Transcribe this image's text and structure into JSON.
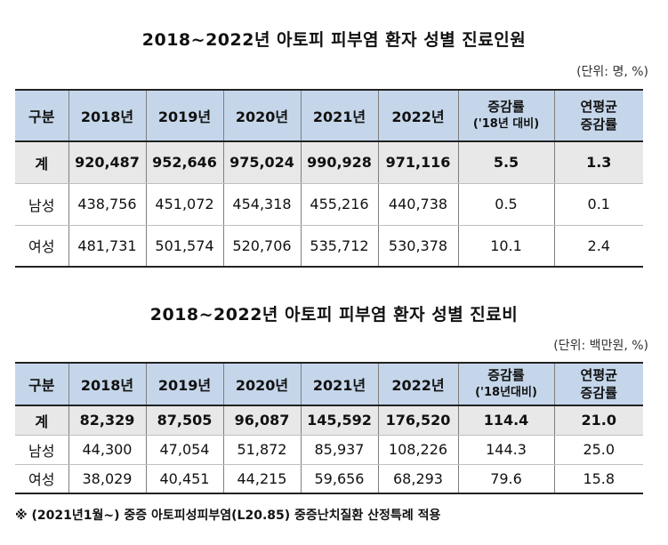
{
  "table1": {
    "title": "2018~2022년 아토피 피부염 환자 성별 진료인원",
    "unit": "(단위: 명, %)",
    "headers": [
      "구분",
      "2018년",
      "2019년",
      "2020년",
      "2021년",
      "2022년"
    ],
    "rate_header_line1": "증감률",
    "rate_header_line2": "('18년 대비)",
    "avg_header_line1": "연평균",
    "avg_header_line2": "증감률",
    "rows": [
      [
        "계",
        "920,487",
        "952,646",
        "975,024",
        "990,928",
        "971,116",
        "5.5",
        "1.3"
      ],
      [
        "남성",
        "438,756",
        "451,072",
        "454,318",
        "455,216",
        "440,738",
        "0.5",
        "0.1"
      ],
      [
        "여성",
        "481,731",
        "501,574",
        "520,706",
        "535,712",
        "530,378",
        "10.1",
        "2.4"
      ]
    ]
  },
  "table2": {
    "title": "2018~2022년 아토피 피부염 환자 성별 진료비",
    "unit": "(단위: 백만원, %)",
    "headers": [
      "구분",
      "2018년",
      "2019년",
      "2020년",
      "2021년",
      "2022년"
    ],
    "rate_header_line1": "증감률",
    "rate_header_line2": "('18년대비)",
    "avg_header_line1": "연평균",
    "avg_header_line2": "증감률",
    "rows": [
      [
        "계",
        "82,329",
        "87,505",
        "96,087",
        "145,592",
        "176,520",
        "114.4",
        "21.0"
      ],
      [
        "남성",
        "44,300",
        "47,054",
        "51,872",
        "85,937",
        "108,226",
        "144.3",
        "25.0"
      ],
      [
        "여성",
        "38,029",
        "40,451",
        "44,215",
        "59,656",
        "68,293",
        "79.6",
        "15.8"
      ]
    ]
  },
  "footnote": "※ (2021년1월~) 중증 아토피성피부염(L20.85) 중증난치질환 산정특례 적용"
}
